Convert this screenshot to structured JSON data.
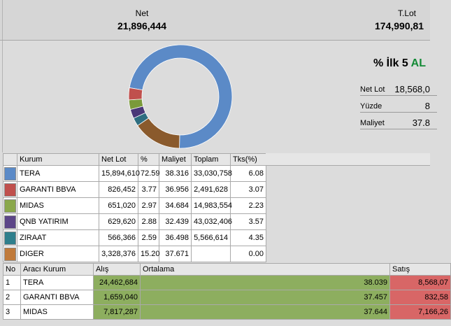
{
  "summary": {
    "net_label": "Net",
    "net_value": "21,896,444",
    "tlot_label": "T.Lot",
    "tlot_value": "174,990,81"
  },
  "ratio_panel": {
    "title": "% İlk 5",
    "title_suffix": "AL",
    "rows": [
      {
        "label": "Net Lot",
        "value": "18,568,0"
      },
      {
        "label": "Yüzde",
        "value": "8"
      },
      {
        "label": "Maliyet",
        "value": "37.8"
      }
    ]
  },
  "donut_chart": {
    "slices": [
      {
        "name": "TERA",
        "percent": 72.59,
        "color": "#5b8ac7"
      },
      {
        "name": "DIGER",
        "percent": 15.2,
        "color": "#8a5a2c"
      },
      {
        "name": "ZIRAAT",
        "percent": 2.59,
        "color": "#2e6e80"
      },
      {
        "name": "QNB YATIRIM",
        "percent": 2.88,
        "color": "#4a3878"
      },
      {
        "name": "MIDAS",
        "percent": 2.97,
        "color": "#7a9a3a"
      },
      {
        "name": "GARANTI BBVA",
        "percent": 3.77,
        "color": "#c0504d"
      }
    ]
  },
  "kurum_table": {
    "headers": [
      "",
      "Kurum",
      "Net Lot",
      "%",
      "Maliyet",
      "Toplam",
      "Tks(%)"
    ],
    "rows": [
      {
        "color": "#5b8ac7",
        "kurum": "TERA",
        "net_lot": "15,894,610",
        "pct": "72.59",
        "maliyet": "38.316",
        "toplam": "33,030,758",
        "tks": "6.08"
      },
      {
        "color": "#c0504d",
        "kurum": "GARANTI BBVA",
        "net_lot": "826,452",
        "pct": "3.77",
        "maliyet": "36.956",
        "toplam": "2,491,628",
        "tks": "3.07"
      },
      {
        "color": "#8aa84c",
        "kurum": "MIDAS",
        "net_lot": "651,020",
        "pct": "2.97",
        "maliyet": "34.684",
        "toplam": "14,983,554",
        "tks": "2.23"
      },
      {
        "color": "#5c4688",
        "kurum": "QNB YATIRIM",
        "net_lot": "629,620",
        "pct": "2.88",
        "maliyet": "32.439",
        "toplam": "43,032,406",
        "tks": "3.57"
      },
      {
        "color": "#2f7f8c",
        "kurum": "ZIRAAT",
        "net_lot": "566,366",
        "pct": "2.59",
        "maliyet": "36.498",
        "toplam": "5,566,614",
        "tks": "4.35"
      },
      {
        "color": "#c07a3a",
        "kurum": "DIGER",
        "net_lot": "3,328,376",
        "pct": "15.20",
        "maliyet": "37.671",
        "toplam": "",
        "tks": "0.00"
      }
    ]
  },
  "araci_table": {
    "headers": [
      "No",
      "Aracı Kurum",
      "Alış",
      "Ortalama",
      "Satış"
    ],
    "rows": [
      {
        "no": "1",
        "kurum": "TERA",
        "alis": "24,462,684",
        "ortalama": "38.039",
        "satis": "8,568,07"
      },
      {
        "no": "2",
        "kurum": "GARANTI BBVA",
        "alis": "1,659,040",
        "ortalama": "37.457",
        "satis": "832,58"
      },
      {
        "no": "3",
        "kurum": "MIDAS",
        "alis": "7,817,287",
        "ortalama": "37.644",
        "satis": "7,166,26"
      }
    ]
  }
}
